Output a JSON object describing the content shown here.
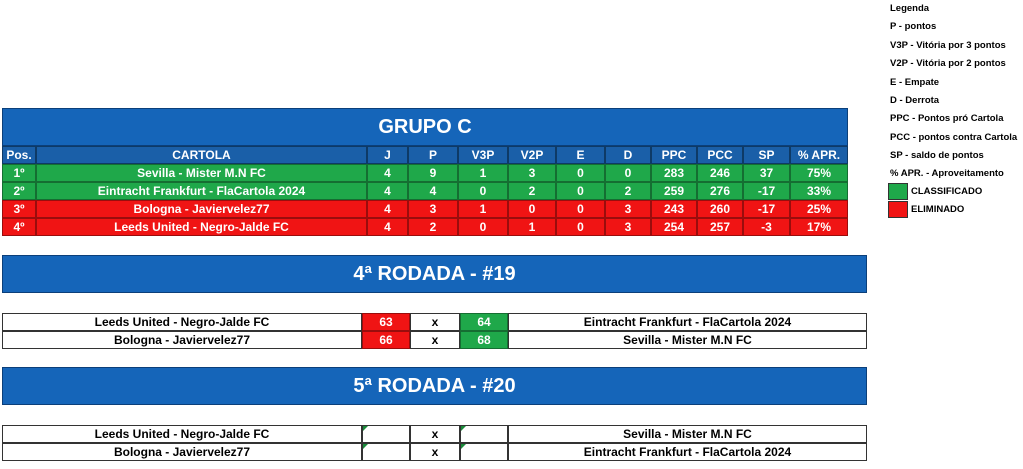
{
  "legend": {
    "title": "Legenda",
    "items": [
      "P - pontos",
      "V3P - Vitória por 3 pontos",
      "V2P - Vitória por 2 pontos",
      "E - Empate",
      "D - Derrota",
      "PPC - Pontos pró Cartola",
      "PCC - pontos contra Cartola",
      "SP - saldo de pontos",
      "% APR. - Aproveitamento"
    ],
    "status": [
      "CLASSIFICADO",
      "ELIMINADO"
    ]
  },
  "group_table": {
    "title": "GRUPO C",
    "columns": [
      "Pos.",
      "CARTOLA",
      "J",
      "P",
      "V3P",
      "V2P",
      "E",
      "D",
      "PPC",
      "PCC",
      "SP",
      "% APR."
    ],
    "rows": [
      [
        "1º",
        "Sevilla - Mister M.N FC",
        4,
        9,
        1,
        3,
        0,
        0,
        283,
        246,
        37,
        "75%"
      ],
      [
        "2º",
        "Eintracht Frankfurt - FlaCartola 2024",
        4,
        4,
        0,
        2,
        0,
        2,
        259,
        276,
        -17,
        "33%"
      ],
      [
        "3º",
        "Bologna - Javiervelez77",
        4,
        3,
        1,
        0,
        0,
        3,
        243,
        260,
        -17,
        "25%"
      ],
      [
        "4º",
        "Leeds United - Negro-Jalde FC",
        4,
        2,
        0,
        1,
        0,
        3,
        254,
        257,
        -3,
        "17%"
      ]
    ]
  },
  "rounds": [
    {
      "title": "4ª RODADA - #19",
      "matches": [
        {
          "home": "Leeds United - Negro-Jalde FC",
          "home_score": 63,
          "vs": "x",
          "away_score": 64,
          "away": "Eintracht Frankfurt - FlaCartola 2024"
        },
        {
          "home": "Bologna - Javiervelez77",
          "home_score": 66,
          "vs": "x",
          "away_score": 68,
          "away": "Sevilla - Mister M.N FC"
        }
      ]
    },
    {
      "title": "5ª RODADA - #20",
      "matches": [
        {
          "home": "Leeds United - Negro-Jalde FC",
          "vs": "x",
          "away": "Sevilla - Mister M.N FC"
        },
        {
          "home": "Bologna - Javiervelez77",
          "vs": "x",
          "away": "Eintracht Frankfurt - FlaCartola 2024"
        }
      ]
    }
  ]
}
